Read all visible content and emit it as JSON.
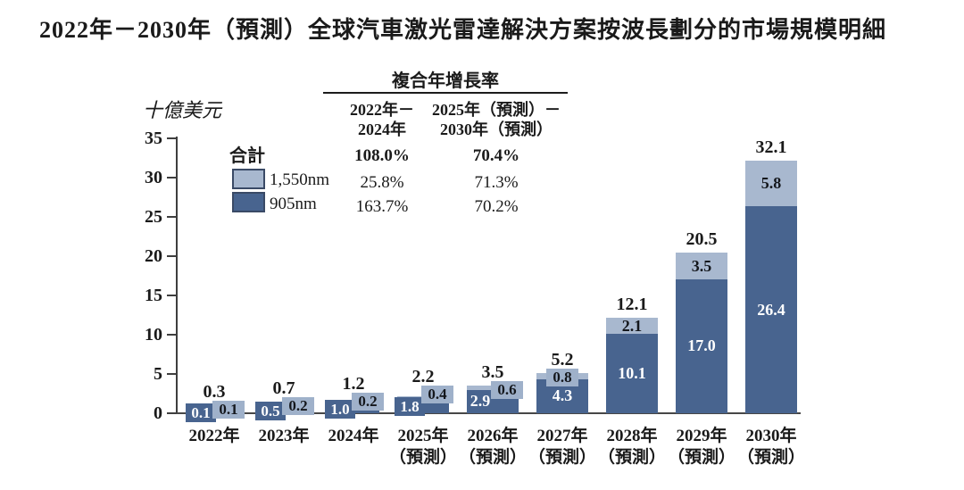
{
  "title": "2022年－2030年（預測）全球汽車激光雷達解決方案按波長劃分的市場規模明細",
  "y_axis": {
    "unit": "十億美元",
    "ticks": [
      0,
      5,
      10,
      15,
      20,
      25,
      30,
      35
    ]
  },
  "cagr_table": {
    "title": "複合年增長率",
    "col_headers": [
      [
        "2022年－",
        "2024年"
      ],
      [
        "2025年（預測）－",
        "2030年（預測）"
      ]
    ],
    "rows": [
      {
        "label": "合計",
        "values": [
          "108.0%",
          "70.4%"
        ],
        "bold": true
      },
      {
        "label": "1,550nm",
        "swatch_color": "#a8b8cf",
        "values": [
          "25.8%",
          "71.3%"
        ],
        "bold": false
      },
      {
        "label": "905nm",
        "swatch_color": "#48648f",
        "values": [
          "163.7%",
          "70.2%"
        ],
        "bold": false
      }
    ]
  },
  "colors": {
    "dark_series": "#48648f",
    "light_series": "#a8b8cf",
    "light_badge": "#9fb1ca",
    "axis": "#474747",
    "text": "#1a1a1a"
  },
  "chart_data": {
    "type": "bar",
    "stacked": true,
    "title": "2022年－2030年（預測）全球汽車激光雷達解決方案按波長劃分的市場規模明細",
    "ylabel": "十億美元",
    "ylim": [
      0,
      35
    ],
    "yticks": [
      0,
      5,
      10,
      15,
      20,
      25,
      30,
      35
    ],
    "grid": false,
    "legend_position": "top-left",
    "categories": [
      "2022年",
      "2023年",
      "2024年",
      "2025年\n（預測）",
      "2026年\n（預測）",
      "2027年\n（預測）",
      "2028年\n（預測）",
      "2029年\n（預測）",
      "2030年\n（預測）"
    ],
    "series": [
      {
        "name": "905nm",
        "color": "#48648f",
        "values": [
          0.1,
          0.5,
          1.0,
          1.8,
          2.9,
          4.3,
          10.1,
          17.0,
          26.4
        ]
      },
      {
        "name": "1,550nm",
        "color": "#a8b8cf",
        "values": [
          0.1,
          0.2,
          0.2,
          0.4,
          0.6,
          0.8,
          2.1,
          3.5,
          5.8
        ]
      }
    ],
    "totals": [
      0.3,
      0.7,
      1.2,
      2.2,
      3.5,
      5.2,
      12.1,
      20.5,
      32.1
    ]
  }
}
